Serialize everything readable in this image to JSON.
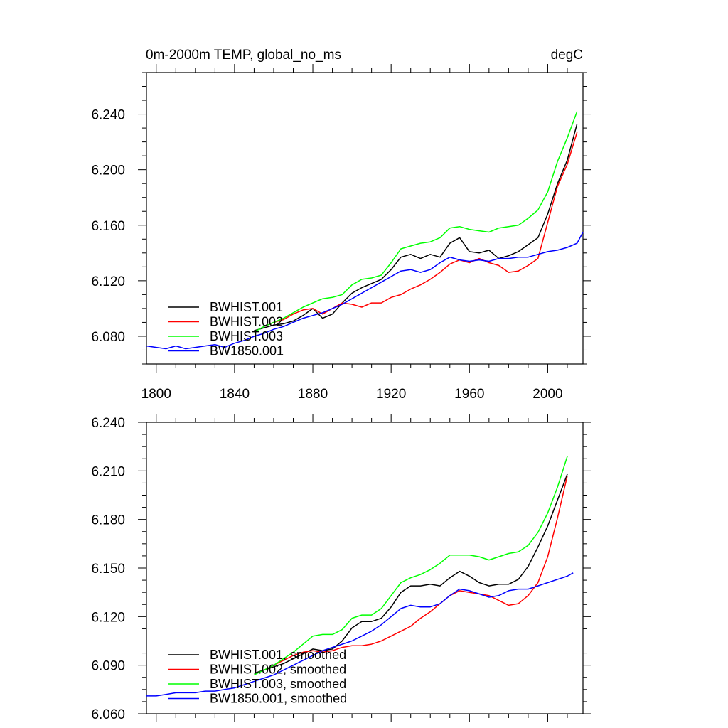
{
  "chart_data": [
    {
      "type": "line",
      "title_left": "0m-2000m TEMP, global_no_ms",
      "title_right": "degC",
      "xlim": [
        1795,
        2018
      ],
      "ylim": [
        6.06,
        6.27
      ],
      "x_ticks": [
        1800,
        1840,
        1880,
        1920,
        1960,
        2000
      ],
      "y_ticks": [
        6.08,
        6.12,
        6.16,
        6.2,
        6.24
      ],
      "x_tick_labels": [
        "1800",
        "1840",
        "1880",
        "1920",
        "1960",
        "2000"
      ],
      "y_tick_labels": [
        "6.080",
        "6.120",
        "6.160",
        "6.200",
        "6.240"
      ],
      "legend_position": "bottom-left",
      "grid": false,
      "series": [
        {
          "name": "BWHIST.001",
          "color": "#000000",
          "x": [
            1850,
            1855,
            1860,
            1865,
            1870,
            1875,
            1880,
            1885,
            1890,
            1895,
            1900,
            1905,
            1910,
            1915,
            1920,
            1925,
            1930,
            1935,
            1940,
            1945,
            1950,
            1955,
            1960,
            1965,
            1970,
            1975,
            1980,
            1985,
            1990,
            1995,
            2000,
            2005,
            2010,
            2015
          ],
          "y": [
            6.084,
            6.086,
            6.088,
            6.089,
            6.091,
            6.095,
            6.1,
            6.093,
            6.096,
            6.104,
            6.111,
            6.115,
            6.118,
            6.121,
            6.128,
            6.137,
            6.139,
            6.136,
            6.139,
            6.137,
            6.147,
            6.151,
            6.141,
            6.14,
            6.142,
            6.136,
            6.138,
            6.141,
            6.146,
            6.151,
            6.168,
            6.19,
            6.207,
            6.233
          ]
        },
        {
          "name": "BWHIST.002",
          "color": "#ff0000",
          "x": [
            1855,
            1860,
            1865,
            1870,
            1875,
            1880,
            1885,
            1890,
            1895,
            1900,
            1905,
            1910,
            1915,
            1920,
            1925,
            1930,
            1935,
            1940,
            1945,
            1950,
            1955,
            1960,
            1965,
            1970,
            1975,
            1980,
            1985,
            1990,
            1995,
            2000,
            2005,
            2010,
            2015
          ],
          "y": [
            6.087,
            6.09,
            6.092,
            6.096,
            6.099,
            6.1,
            6.096,
            6.1,
            6.104,
            6.103,
            6.101,
            6.104,
            6.104,
            6.108,
            6.11,
            6.114,
            6.117,
            6.121,
            6.126,
            6.132,
            6.135,
            6.133,
            6.136,
            6.133,
            6.131,
            6.126,
            6.127,
            6.131,
            6.136,
            6.162,
            6.188,
            6.204,
            6.227
          ]
        },
        {
          "name": "BWHIST.003",
          "color": "#00ff00",
          "x": [
            1850,
            1855,
            1860,
            1865,
            1870,
            1875,
            1880,
            1885,
            1890,
            1895,
            1900,
            1905,
            1910,
            1915,
            1920,
            1925,
            1930,
            1935,
            1940,
            1945,
            1950,
            1955,
            1960,
            1965,
            1970,
            1975,
            1980,
            1985,
            1990,
            1995,
            2000,
            2005,
            2010,
            2015
          ],
          "y": [
            6.083,
            6.087,
            6.09,
            6.093,
            6.097,
            6.101,
            6.104,
            6.107,
            6.108,
            6.11,
            6.117,
            6.121,
            6.122,
            6.124,
            6.133,
            6.143,
            6.145,
            6.147,
            6.148,
            6.151,
            6.158,
            6.159,
            6.157,
            6.156,
            6.155,
            6.158,
            6.159,
            6.16,
            6.165,
            6.171,
            6.184,
            6.206,
            6.223,
            6.242
          ]
        },
        {
          "name": "BW1850.001",
          "color": "#0000ff",
          "x": [
            1795,
            1800,
            1805,
            1810,
            1815,
            1820,
            1825,
            1830,
            1835,
            1840,
            1845,
            1850,
            1855,
            1860,
            1865,
            1870,
            1875,
            1880,
            1885,
            1890,
            1895,
            1900,
            1905,
            1910,
            1915,
            1920,
            1925,
            1930,
            1935,
            1940,
            1945,
            1950,
            1955,
            1960,
            1965,
            1970,
            1975,
            1980,
            1985,
            1990,
            1995,
            2000,
            2005,
            2010,
            2015,
            2018
          ],
          "y": [
            6.073,
            6.072,
            6.071,
            6.073,
            6.071,
            6.072,
            6.073,
            6.074,
            6.072,
            6.075,
            6.077,
            6.08,
            6.082,
            6.085,
            6.087,
            6.09,
            6.093,
            6.095,
            6.097,
            6.1,
            6.103,
            6.107,
            6.111,
            6.115,
            6.119,
            6.123,
            6.127,
            6.128,
            6.126,
            6.128,
            6.133,
            6.137,
            6.135,
            6.134,
            6.135,
            6.134,
            6.136,
            6.136,
            6.137,
            6.137,
            6.139,
            6.141,
            6.142,
            6.144,
            6.147,
            6.155
          ]
        }
      ]
    },
    {
      "type": "line",
      "xlim": [
        1795,
        2018
      ],
      "ylim": [
        6.06,
        6.24
      ],
      "x_ticks": [
        1800,
        1840,
        1880,
        1920,
        1960,
        2000
      ],
      "y_ticks": [
        6.06,
        6.09,
        6.12,
        6.15,
        6.18,
        6.21,
        6.24
      ],
      "y_tick_labels": [
        "6.060",
        "6.090",
        "6.120",
        "6.150",
        "6.180",
        "6.210",
        "6.240"
      ],
      "legend_position": "bottom-left",
      "grid": false,
      "series": [
        {
          "name": "BWHIST.001, smoothed",
          "color": "#000000",
          "x": [
            1850,
            1855,
            1860,
            1865,
            1870,
            1875,
            1880,
            1885,
            1890,
            1895,
            1900,
            1905,
            1910,
            1915,
            1920,
            1925,
            1930,
            1935,
            1940,
            1945,
            1950,
            1955,
            1960,
            1965,
            1970,
            1975,
            1980,
            1985,
            1990,
            1995,
            2000,
            2005,
            2010
          ],
          "y": [
            6.085,
            6.087,
            6.089,
            6.091,
            6.094,
            6.097,
            6.1,
            6.099,
            6.1,
            6.105,
            6.113,
            6.117,
            6.117,
            6.119,
            6.126,
            6.135,
            6.139,
            6.139,
            6.14,
            6.139,
            6.144,
            6.148,
            6.145,
            6.141,
            6.139,
            6.14,
            6.14,
            6.143,
            6.151,
            6.163,
            6.176,
            6.192,
            6.208
          ]
        },
        {
          "name": "BWHIST.002, smoothed",
          "color": "#ff0000",
          "x": [
            1855,
            1860,
            1865,
            1870,
            1875,
            1880,
            1885,
            1890,
            1895,
            1900,
            1905,
            1910,
            1915,
            1920,
            1925,
            1930,
            1935,
            1940,
            1945,
            1950,
            1955,
            1960,
            1965,
            1970,
            1975,
            1980,
            1985,
            1990,
            1995,
            2000,
            2005,
            2010
          ],
          "y": [
            6.087,
            6.09,
            6.093,
            6.096,
            6.098,
            6.099,
            6.098,
            6.099,
            6.101,
            6.102,
            6.102,
            6.103,
            6.105,
            6.108,
            6.111,
            6.114,
            6.119,
            6.123,
            6.128,
            6.133,
            6.136,
            6.135,
            6.134,
            6.133,
            6.13,
            6.127,
            6.128,
            6.133,
            6.141,
            6.157,
            6.181,
            6.207
          ]
        },
        {
          "name": "BWHIST.003, smoothed",
          "color": "#00ff00",
          "x": [
            1850,
            1855,
            1860,
            1865,
            1870,
            1875,
            1880,
            1885,
            1890,
            1895,
            1900,
            1905,
            1910,
            1915,
            1920,
            1925,
            1930,
            1935,
            1940,
            1945,
            1950,
            1955,
            1960,
            1965,
            1970,
            1975,
            1980,
            1985,
            1990,
            1995,
            2000,
            2005,
            2010
          ],
          "y": [
            6.084,
            6.087,
            6.09,
            6.094,
            6.098,
            6.103,
            6.108,
            6.109,
            6.109,
            6.112,
            6.119,
            6.121,
            6.121,
            6.125,
            6.133,
            6.141,
            6.144,
            6.146,
            6.149,
            6.153,
            6.158,
            6.158,
            6.158,
            6.157,
            6.155,
            6.157,
            6.159,
            6.16,
            6.164,
            6.172,
            6.184,
            6.2,
            6.219
          ]
        },
        {
          "name": "BW1850.001, smoothed",
          "color": "#0000ff",
          "x": [
            1795,
            1800,
            1805,
            1810,
            1815,
            1820,
            1825,
            1830,
            1835,
            1840,
            1845,
            1850,
            1855,
            1860,
            1865,
            1870,
            1875,
            1880,
            1885,
            1890,
            1895,
            1900,
            1905,
            1910,
            1915,
            1920,
            1925,
            1930,
            1935,
            1940,
            1945,
            1950,
            1955,
            1960,
            1965,
            1970,
            1975,
            1980,
            1985,
            1990,
            1995,
            2000,
            2005,
            2010,
            2013
          ],
          "y": [
            6.071,
            6.071,
            6.072,
            6.073,
            6.073,
            6.073,
            6.074,
            6.074,
            6.075,
            6.076,
            6.078,
            6.08,
            6.082,
            6.084,
            6.087,
            6.09,
            6.093,
            6.096,
            6.099,
            6.101,
            6.103,
            6.105,
            6.108,
            6.111,
            6.115,
            6.12,
            6.125,
            6.127,
            6.126,
            6.126,
            6.128,
            6.133,
            6.137,
            6.136,
            6.134,
            6.132,
            6.133,
            6.136,
            6.137,
            6.137,
            6.139,
            6.141,
            6.143,
            6.145,
            6.147
          ]
        }
      ]
    }
  ]
}
